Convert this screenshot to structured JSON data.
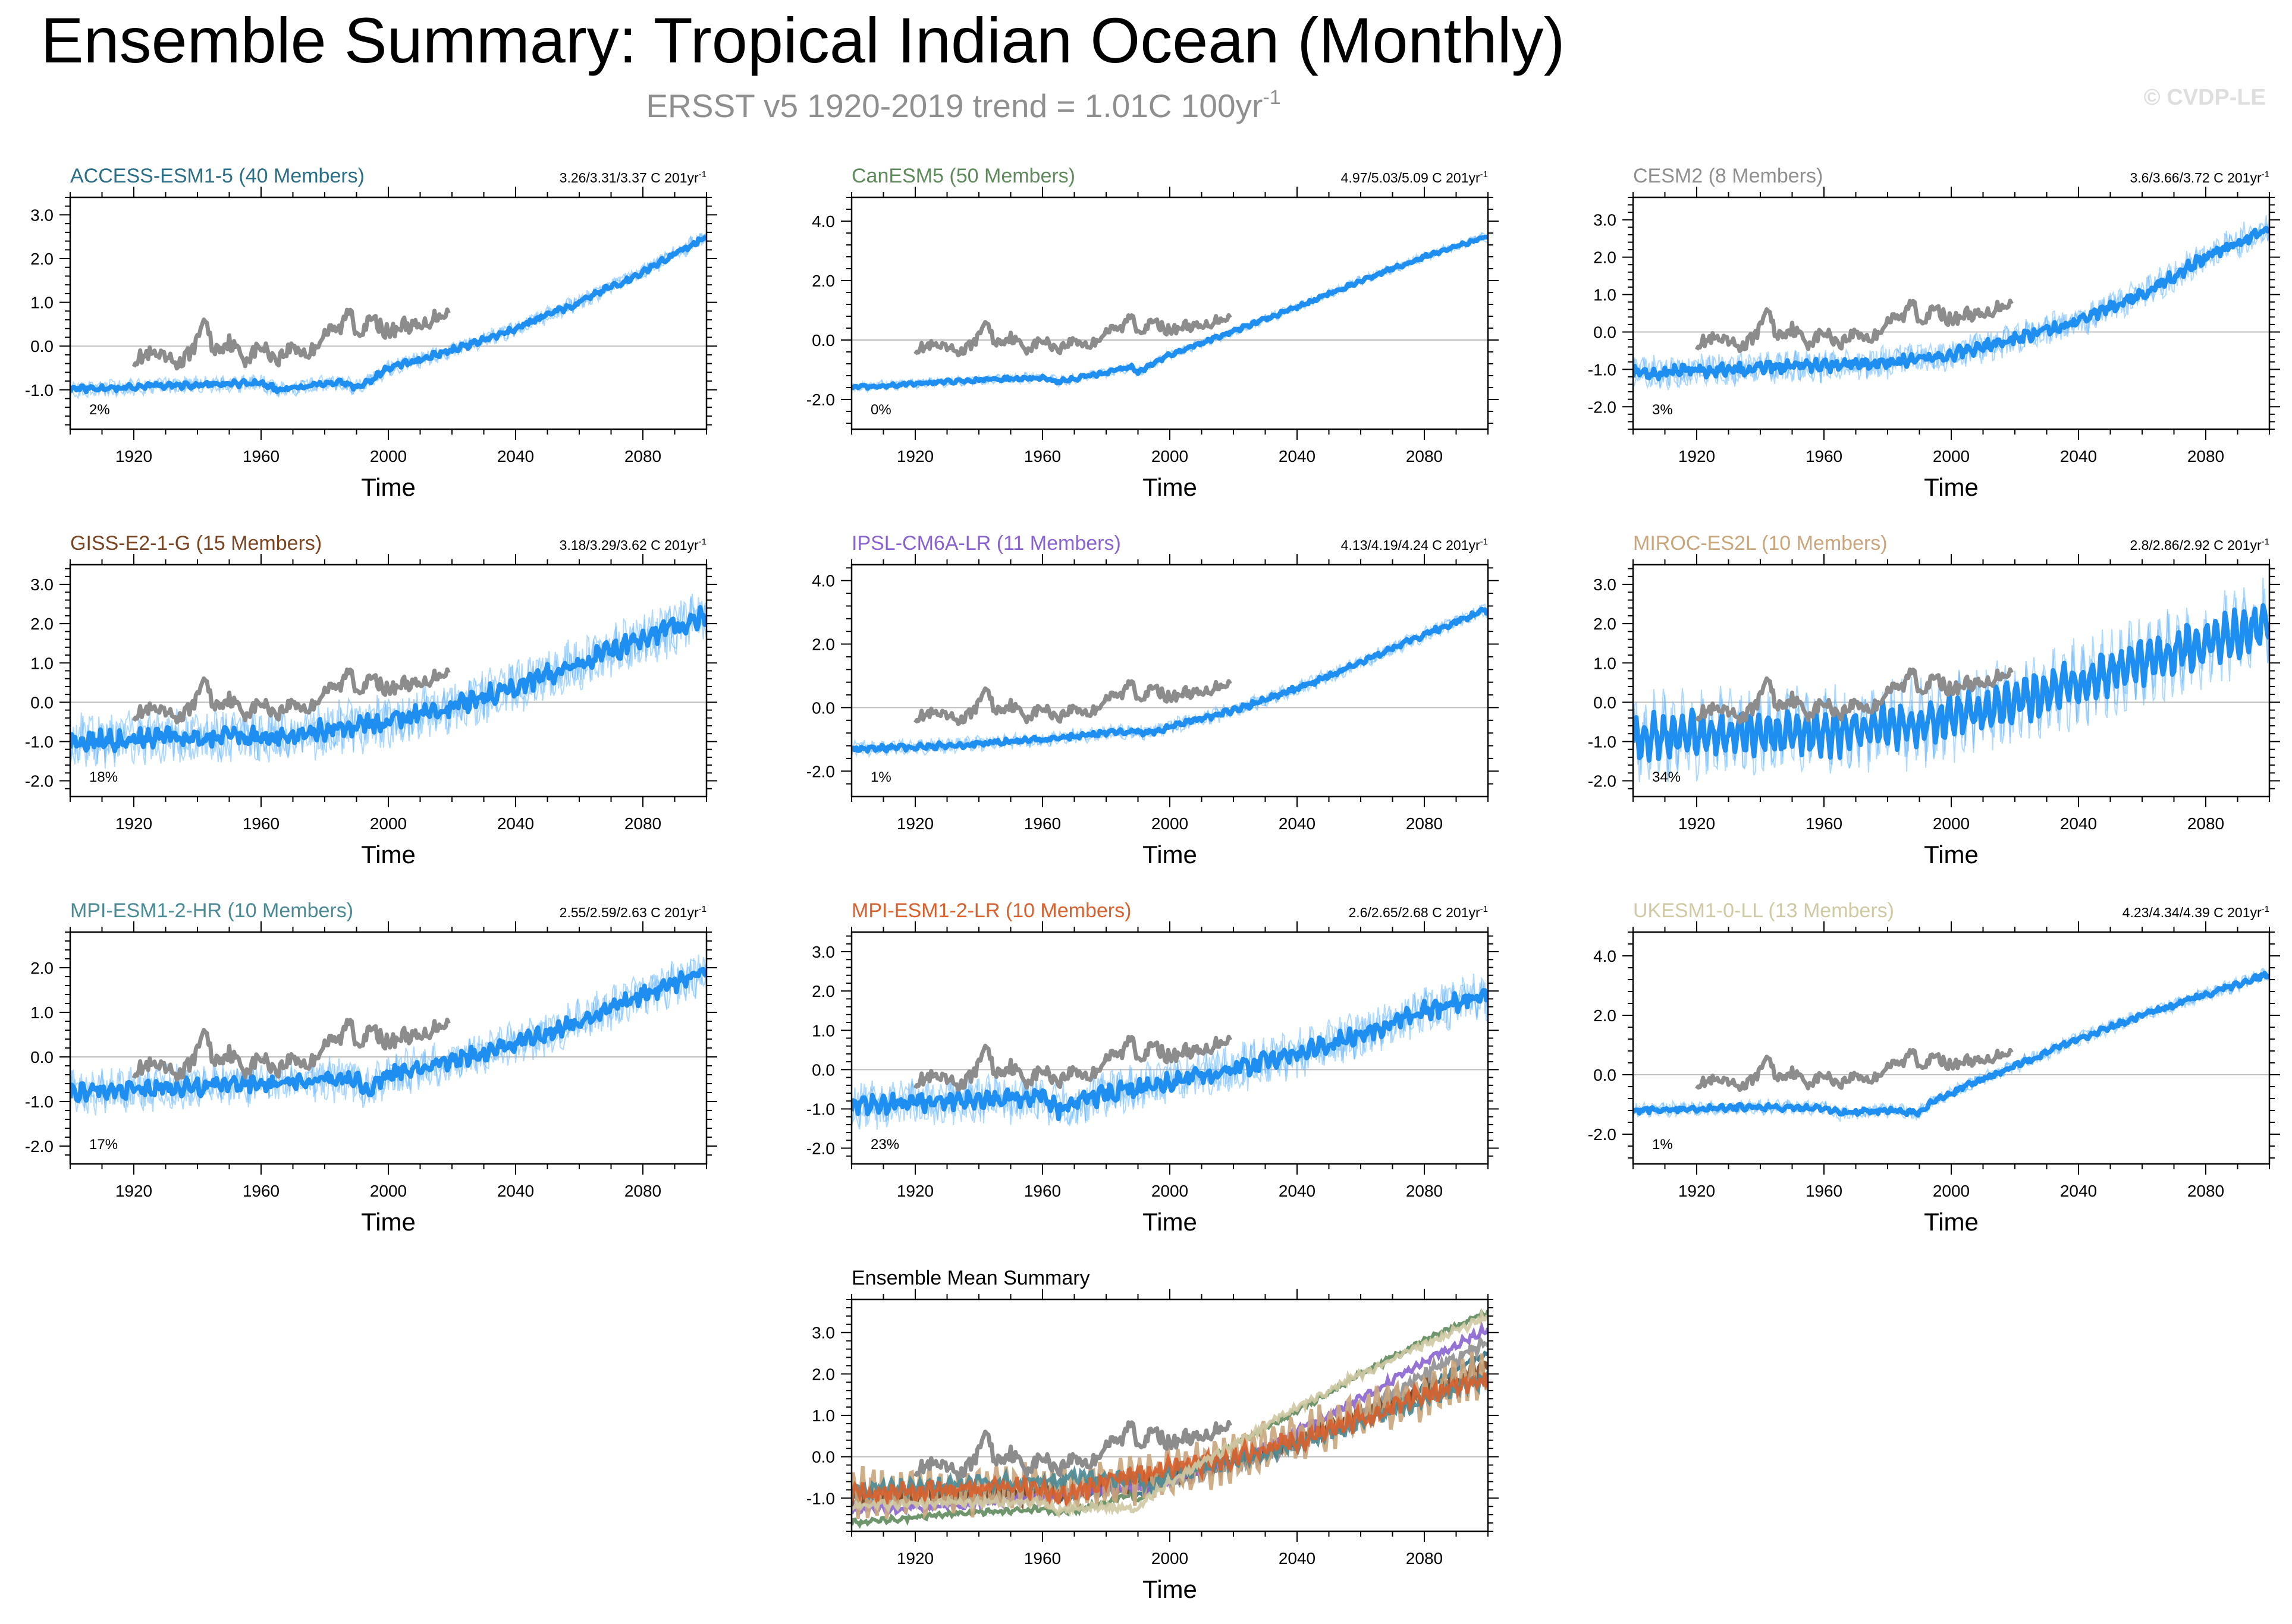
{
  "title": "Ensemble Summary: Tropical Indian Ocean (Monthly)",
  "subtitle": {
    "text": "ERSST v5 1920-2019 trend = 1.01C 100yr",
    "sup": "-1"
  },
  "watermark": "© CVDP-LE",
  "trend_unit": "C 201yr",
  "trend_unit_sup": "-1",
  "observations": {
    "name": "ERSST v5",
    "color": "#8c8c8c",
    "x": [
      1920,
      1925,
      1930,
      1935,
      1940,
      1942,
      1945,
      1950,
      1955,
      1960,
      1965,
      1970,
      1975,
      1980,
      1985,
      1988,
      1990,
      1995,
      2000,
      2005,
      2010,
      2015,
      2019
    ],
    "y": [
      -0.3,
      -0.2,
      -0.3,
      -0.4,
      0.1,
      0.7,
      -0.1,
      0.1,
      -0.3,
      0.0,
      -0.3,
      0.0,
      -0.2,
      0.3,
      0.4,
      0.9,
      0.3,
      0.6,
      0.3,
      0.5,
      0.4,
      0.7,
      0.8
    ]
  },
  "chart_data": [
    {
      "type": "line",
      "title": "ACCESS-ESM1-5 (40 Members)",
      "title_color": "#2b6e87",
      "trend": "3.26/3.31/3.37",
      "pct": "2%",
      "xlabel": "Time",
      "xlim": [
        1900,
        2100
      ],
      "xticks": [
        1920,
        1960,
        2000,
        2040,
        2080
      ],
      "ylim": [
        -1.9,
        3.4
      ],
      "yticks": [
        -1.0,
        0.0,
        1.0,
        2.0,
        3.0
      ],
      "ytick_labels": [
        "-1.0",
        "0.0",
        "1.0",
        "2.0",
        "3.0"
      ],
      "x": [
        1900,
        1930,
        1960,
        1965,
        1980,
        1985,
        1990,
        1992,
        2000,
        2020,
        2040,
        2060,
        2080,
        2100
      ],
      "y": [
        -1.0,
        -0.9,
        -0.85,
        -1.0,
        -0.85,
        -0.8,
        -0.95,
        -0.9,
        -0.5,
        -0.1,
        0.4,
        1.0,
        1.7,
        2.5
      ],
      "noise": 0.08,
      "seasonal": 0.03
    },
    {
      "type": "line",
      "title": "CanESM5 (50 Members)",
      "title_color": "#5f8a5c",
      "trend": "4.97/5.03/5.09",
      "pct": "0%",
      "xlabel": "Time",
      "xlim": [
        1900,
        2100
      ],
      "xticks": [
        1920,
        1960,
        2000,
        2040,
        2080
      ],
      "ylim": [
        -3.0,
        4.8
      ],
      "yticks": [
        -2.0,
        0.0,
        2.0,
        4.0
      ],
      "ytick_labels": [
        "-2.0",
        "0.0",
        "2.0",
        "4.0"
      ],
      "x": [
        1900,
        1930,
        1960,
        1965,
        1980,
        1988,
        1990,
        1993,
        2000,
        2020,
        2040,
        2060,
        2080,
        2100
      ],
      "y": [
        -1.6,
        -1.4,
        -1.25,
        -1.4,
        -1.1,
        -0.9,
        -1.1,
        -0.9,
        -0.5,
        0.3,
        1.1,
        2.0,
        2.8,
        3.5
      ],
      "noise": 0.07,
      "seasonal": 0.03
    },
    {
      "type": "line",
      "title": "CESM2 (8 Members)",
      "title_color": "#8f8f8f",
      "trend": "3.6/3.66/3.72",
      "pct": "3%",
      "xlabel": "Time",
      "xlim": [
        1900,
        2100
      ],
      "xticks": [
        1920,
        1960,
        2000,
        2040,
        2080
      ],
      "ylim": [
        -2.6,
        3.6
      ],
      "yticks": [
        -2.0,
        -1.0,
        0.0,
        1.0,
        2.0,
        3.0
      ],
      "ytick_labels": [
        "-2.0",
        "-1.0",
        "0.0",
        "1.0",
        "2.0",
        "3.0"
      ],
      "x": [
        1900,
        1930,
        1960,
        1980,
        2000,
        2020,
        2040,
        2060,
        2080,
        2100
      ],
      "y": [
        -1.1,
        -1.0,
        -0.9,
        -0.8,
        -0.6,
        -0.2,
        0.3,
        1.0,
        2.0,
        2.8
      ],
      "noise": 0.18,
      "seasonal": 0.06
    },
    {
      "type": "line",
      "title": "GISS-E2-1-G (15 Members)",
      "title_color": "#7a4522",
      "trend": "3.18/3.29/3.62",
      "pct": "18%",
      "xlabel": "Time",
      "xlim": [
        1900,
        2100
      ],
      "xticks": [
        1920,
        1960,
        2000,
        2040,
        2080
      ],
      "ylim": [
        -2.4,
        3.5
      ],
      "yticks": [
        -2.0,
        -1.0,
        0.0,
        1.0,
        2.0,
        3.0
      ],
      "ytick_labels": [
        "-2.0",
        "-1.0",
        "0.0",
        "1.0",
        "2.0",
        "3.0"
      ],
      "x": [
        1900,
        1930,
        1960,
        1980,
        2000,
        2020,
        2040,
        2060,
        2080,
        2100
      ],
      "y": [
        -1.0,
        -0.9,
        -0.9,
        -0.7,
        -0.5,
        -0.1,
        0.4,
        1.0,
        1.6,
        2.2
      ],
      "noise": 0.28,
      "seasonal": 0.1
    },
    {
      "type": "line",
      "title": "IPSL-CM6A-LR (11 Members)",
      "title_color": "#8a63d2",
      "trend": "4.13/4.19/4.24",
      "pct": "1%",
      "xlabel": "Time",
      "xlim": [
        1900,
        2100
      ],
      "xticks": [
        1920,
        1960,
        2000,
        2040,
        2080
      ],
      "ylim": [
        -2.8,
        4.5
      ],
      "yticks": [
        -2.0,
        0.0,
        2.0,
        4.0
      ],
      "ytick_labels": [
        "-2.0",
        "0.0",
        "2.0",
        "4.0"
      ],
      "x": [
        1900,
        1930,
        1960,
        1980,
        1990,
        1993,
        2000,
        2020,
        2040,
        2060,
        2080,
        2100
      ],
      "y": [
        -1.3,
        -1.2,
        -1.0,
        -0.8,
        -0.75,
        -0.8,
        -0.6,
        -0.1,
        0.6,
        1.4,
        2.3,
        3.1
      ],
      "noise": 0.1,
      "seasonal": 0.04
    },
    {
      "type": "line",
      "title": "MIROC-ES2L (10 Members)",
      "title_color": "#c9a57c",
      "trend": "2.8/2.86/2.92",
      "pct": "34%",
      "xlabel": "Time",
      "xlim": [
        1900,
        2100
      ],
      "xticks": [
        1920,
        1960,
        2000,
        2040,
        2080
      ],
      "ylim": [
        -2.4,
        3.5
      ],
      "yticks": [
        -2.0,
        -1.0,
        0.0,
        1.0,
        2.0,
        3.0
      ],
      "ytick_labels": [
        "-2.0",
        "-1.0",
        "0.0",
        "1.0",
        "2.0",
        "3.0"
      ],
      "x": [
        1900,
        1930,
        1960,
        1980,
        2000,
        2020,
        2040,
        2060,
        2080,
        2100
      ],
      "y": [
        -0.9,
        -0.8,
        -0.8,
        -0.6,
        -0.4,
        0.0,
        0.5,
        1.0,
        1.5,
        2.0
      ],
      "noise": 0.3,
      "seasonal": 0.45
    },
    {
      "type": "line",
      "title": "MPI-ESM1-2-HR (10 Members)",
      "title_color": "#4a8a95",
      "trend": "2.55/2.59/2.63",
      "pct": "17%",
      "xlabel": "Time",
      "xlim": [
        1900,
        2100
      ],
      "xticks": [
        1920,
        1960,
        2000,
        2040,
        2080
      ],
      "ylim": [
        -2.4,
        2.8
      ],
      "yticks": [
        -2.0,
        -1.0,
        0.0,
        1.0,
        2.0
      ],
      "ytick_labels": [
        "-2.0",
        "-1.0",
        "0.0",
        "1.0",
        "2.0"
      ],
      "x": [
        1900,
        1930,
        1960,
        1980,
        1990,
        1993,
        2000,
        2020,
        2040,
        2060,
        2080,
        2100
      ],
      "y": [
        -0.8,
        -0.7,
        -0.6,
        -0.5,
        -0.5,
        -0.8,
        -0.4,
        -0.1,
        0.3,
        0.8,
        1.4,
        1.9
      ],
      "noise": 0.2,
      "seasonal": 0.08
    },
    {
      "type": "line",
      "title": "MPI-ESM1-2-LR (10 Members)",
      "title_color": "#d8612e",
      "trend": "2.6/2.65/2.68",
      "pct": "23%",
      "xlabel": "Time",
      "xlim": [
        1900,
        2100
      ],
      "xticks": [
        1920,
        1960,
        2000,
        2040,
        2080
      ],
      "ylim": [
        -2.4,
        3.5
      ],
      "yticks": [
        -2.0,
        -1.0,
        0.0,
        1.0,
        2.0,
        3.0
      ],
      "ytick_labels": [
        "-2.0",
        "-1.0",
        "0.0",
        "1.0",
        "2.0",
        "3.0"
      ],
      "x": [
        1900,
        1930,
        1960,
        1965,
        1980,
        2000,
        2020,
        2040,
        2060,
        2080,
        2100
      ],
      "y": [
        -0.9,
        -0.8,
        -0.7,
        -1.0,
        -0.6,
        -0.3,
        0.0,
        0.4,
        0.9,
        1.5,
        1.9
      ],
      "noise": 0.25,
      "seasonal": 0.1
    },
    {
      "type": "line",
      "title": "UKESM1-0-LL (13 Members)",
      "title_color": "#cfc9a4",
      "trend": "4.23/4.34/4.39",
      "pct": "1%",
      "xlabel": "Time",
      "xlim": [
        1900,
        2100
      ],
      "xticks": [
        1920,
        1960,
        2000,
        2040,
        2080
      ],
      "ylim": [
        -3.0,
        4.8
      ],
      "yticks": [
        -2.0,
        0.0,
        2.0,
        4.0
      ],
      "ytick_labels": [
        "-2.0",
        "0.0",
        "2.0",
        "4.0"
      ],
      "x": [
        1900,
        1930,
        1960,
        1965,
        1980,
        1990,
        1993,
        2000,
        2020,
        2040,
        2060,
        2080,
        2100
      ],
      "y": [
        -1.2,
        -1.1,
        -1.1,
        -1.3,
        -1.2,
        -1.3,
        -1.0,
        -0.6,
        0.3,
        1.2,
        2.0,
        2.7,
        3.4
      ],
      "noise": 0.1,
      "seasonal": 0.04
    },
    {
      "type": "line",
      "title": "Ensemble Mean Summary",
      "title_color": "#000000",
      "xlabel": "Time",
      "xlim": [
        1900,
        2100
      ],
      "xticks": [
        1920,
        1960,
        2000,
        2040,
        2080
      ],
      "ylim": [
        -1.8,
        3.8
      ],
      "yticks": [
        -1.0,
        0.0,
        1.0,
        2.0,
        3.0
      ],
      "ytick_labels": [
        "-1.0",
        "0.0",
        "1.0",
        "2.0",
        "3.0"
      ],
      "series_from_panels": true
    }
  ]
}
